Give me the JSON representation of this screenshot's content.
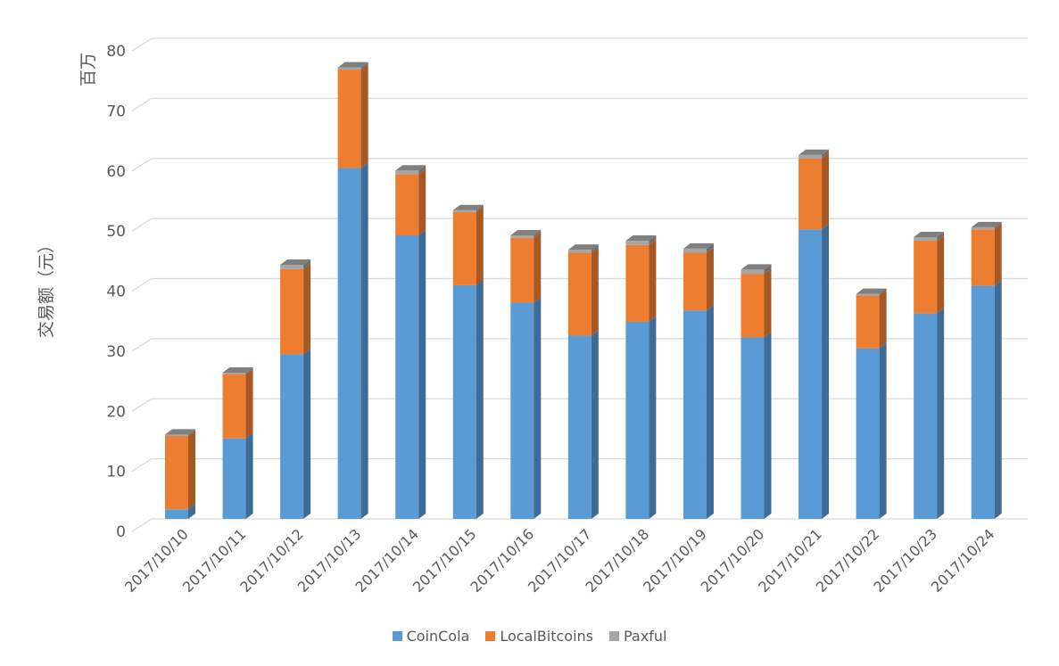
{
  "chart_data": {
    "type": "bar",
    "stacked": true,
    "three_d": true,
    "categories": [
      "2017/10/10",
      "2017/10/11",
      "2017/10/12",
      "2017/10/13",
      "2017/10/14",
      "2017/10/15",
      "2017/10/16",
      "2017/10/17",
      "2017/10/18",
      "2017/10/19",
      "2017/10/20",
      "2017/10/21",
      "2017/10/22",
      "2017/10/23",
      "2017/10/24"
    ],
    "series": [
      {
        "name": "CoinCola",
        "color": "#5B9BD5",
        "side_color": "#3E6C98",
        "values": [
          1.6,
          13.4,
          27.4,
          58.4,
          47.2,
          38.9,
          36.0,
          30.5,
          32.8,
          34.7,
          30.2,
          48.2,
          28.4,
          34.2,
          38.8
        ]
      },
      {
        "name": "LocalBitcoins",
        "color": "#ED7D31",
        "side_color": "#A85822",
        "values": [
          12.2,
          10.7,
          14.2,
          16.4,
          10.2,
          12.2,
          10.8,
          13.8,
          12.8,
          9.6,
          10.6,
          11.8,
          8.8,
          12.1,
          9.4
        ]
      },
      {
        "name": "Paxful",
        "color": "#A5A5A5",
        "side_color": "#6E6E6E",
        "values": [
          0.25,
          0.25,
          0.7,
          0.35,
          0.6,
          0.3,
          0.4,
          0.5,
          0.7,
          0.7,
          0.7,
          0.6,
          0.25,
          0.6,
          0.35
        ]
      }
    ],
    "ylim": [
      0,
      80
    ],
    "yticks": [
      "0",
      "10",
      "20",
      "30",
      "40",
      "50",
      "60",
      "70",
      "80"
    ],
    "ylabel": "交易额（元）",
    "yunit": "百万",
    "xlabel": "",
    "grid": true,
    "legend_position": "bottom"
  }
}
